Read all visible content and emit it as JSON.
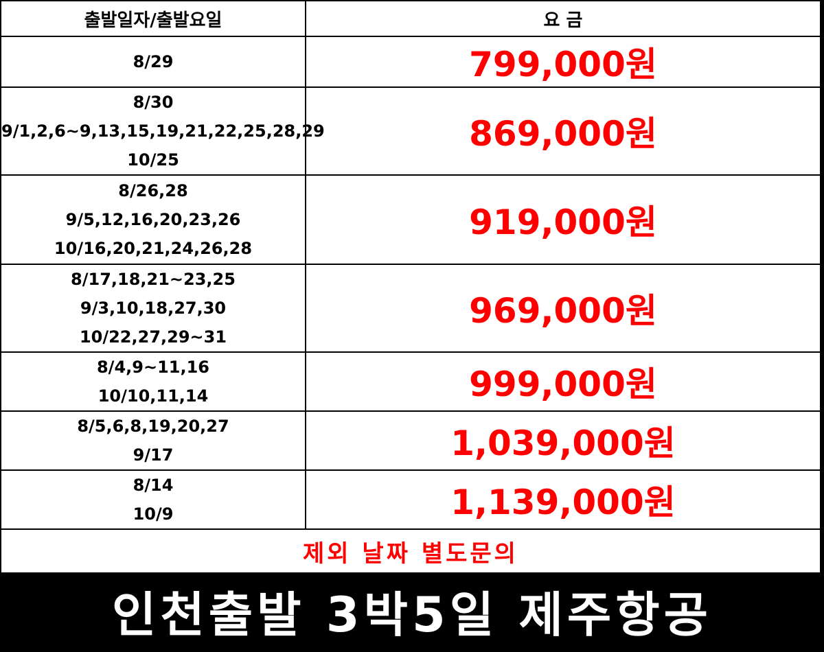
{
  "table": {
    "headers": {
      "dates": "출발일자/출발요일",
      "price": "요 금"
    },
    "rows": [
      {
        "dates": [
          "8/29"
        ],
        "price": "799,000원"
      },
      {
        "dates": [
          "8/30",
          "9/1,2,6~9,13,15,19,21,22,25,28,29",
          "10/25"
        ],
        "price": "869,000원"
      },
      {
        "dates": [
          "8/26,28",
          "9/5,12,16,20,23,26",
          "10/16,20,21,24,26,28"
        ],
        "price": "919,000원"
      },
      {
        "dates": [
          "8/17,18,21~23,25",
          "9/3,10,18,27,30",
          "10/22,27,29~31"
        ],
        "price": "969,000원"
      },
      {
        "dates": [
          "8/4,9~11,16",
          "10/10,11,14"
        ],
        "price": "999,000원"
      },
      {
        "dates": [
          "8/5,6,8,19,20,27",
          "9/17"
        ],
        "price": "1,039,000원"
      },
      {
        "dates": [
          "8/14",
          "10/9"
        ],
        "price": "1,139,000원"
      }
    ],
    "notice": "제외 날짜 별도문의"
  },
  "footer": {
    "title": "인천출발 3박5일 제주항공"
  },
  "colors": {
    "price": "#ff0000",
    "notice": "#ff0000",
    "footer_bg": "#000000",
    "footer_text": "#ffffff"
  }
}
